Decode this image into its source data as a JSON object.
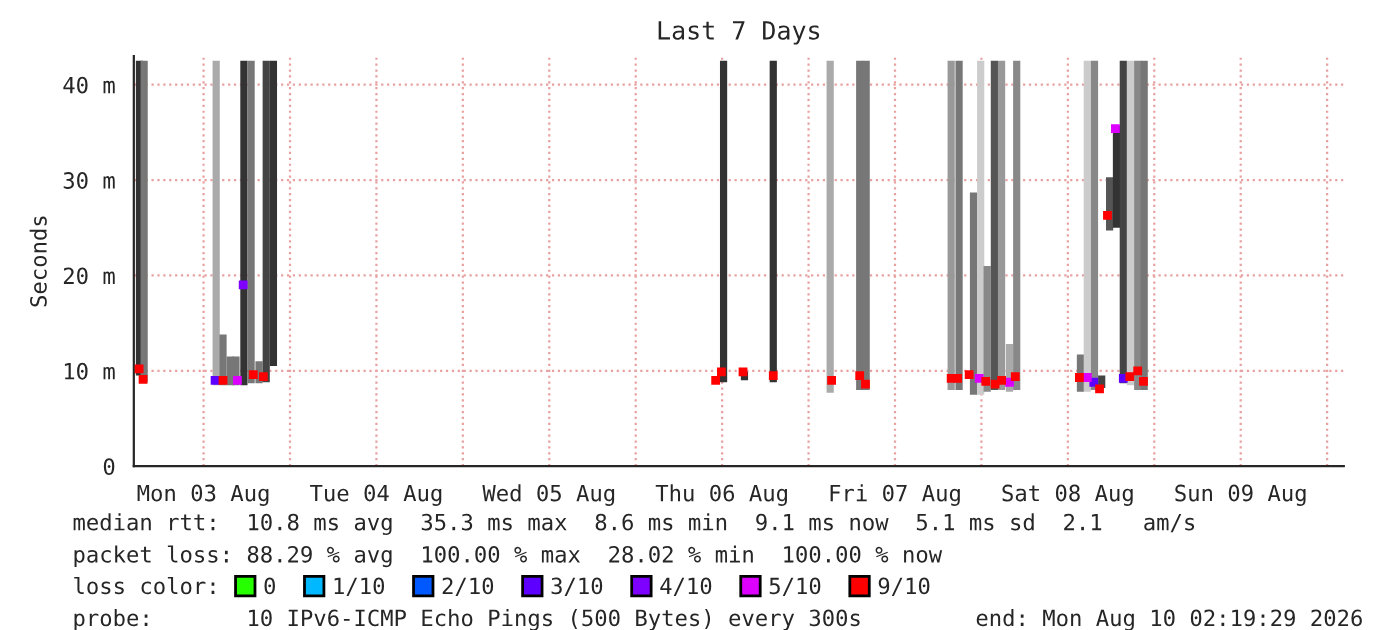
{
  "chart_data": {
    "type": "bar",
    "title": "Last 7 Days",
    "ylabel": "Seconds",
    "legend_title": "loss color:",
    "xlim": [
      "2026-08-03T02:19",
      "2026-08-10T02:19"
    ],
    "xticks": [
      {
        "value": "2026-08-03T12:00",
        "label": "Mon 03 Aug"
      },
      {
        "value": "2026-08-04T00:00",
        "label": null
      },
      {
        "value": "2026-08-04T12:00",
        "label": "Tue 04 Aug"
      },
      {
        "value": "2026-08-05T00:00",
        "label": null
      },
      {
        "value": "2026-08-05T12:00",
        "label": "Wed 05 Aug"
      },
      {
        "value": "2026-08-06T00:00",
        "label": null
      },
      {
        "value": "2026-08-06T12:00",
        "label": "Thu 06 Aug"
      },
      {
        "value": "2026-08-07T00:00",
        "label": null
      },
      {
        "value": "2026-08-07T12:00",
        "label": "Fri 07 Aug"
      },
      {
        "value": "2026-08-08T00:00",
        "label": null
      },
      {
        "value": "2026-08-08T12:00",
        "label": "Sat 08 Aug"
      },
      {
        "value": "2026-08-09T00:00",
        "label": null
      },
      {
        "value": "2026-08-09T12:00",
        "label": "Sun 09 Aug"
      },
      {
        "value": "2026-08-10T00:00",
        "label": null
      }
    ],
    "ylim": [
      0,
      43
    ],
    "yticks": [
      0,
      {
        "value": 10,
        "label": "10 m"
      },
      {
        "value": 20,
        "label": "20 m"
      },
      {
        "value": 30,
        "label": "30 m"
      },
      {
        "value": 40,
        "label": "40 m"
      }
    ],
    "grid": true,
    "legend": "bottom",
    "series": [
      {
        "x": [
          "2026-08-03T03:06",
          "2026-08-03T03:45",
          "2026-08-03T13:45",
          "2026-08-03T14:42",
          "2026-08-03T15:42",
          "2026-08-03T16:30",
          "2026-08-03T17:36",
          "2026-08-03T18:36",
          "2026-08-03T19:42",
          "2026-08-03T20:42",
          "2026-08-03T21:42",
          "2026-08-06T12:12",
          "2026-08-06T15:06",
          "2026-08-06T19:06",
          "2026-08-07T03:00",
          "2026-08-07T07:06",
          "2026-08-07T08:00",
          "2026-08-07T19:48",
          "2026-08-07T20:54",
          "2026-08-07T22:54",
          "2026-08-07T23:54",
          "2026-08-08T00:48",
          "2026-08-08T01:48",
          "2026-08-08T02:48",
          "2026-08-08T03:54",
          "2026-08-08T04:54",
          "2026-08-08T13:45",
          "2026-08-08T14:42",
          "2026-08-08T15:42",
          "2026-08-08T16:42",
          "2026-08-08T17:48",
          "2026-08-08T18:45",
          "2026-08-08T19:42",
          "2026-08-08T20:42",
          "2026-08-08T21:42",
          "2026-08-08T22:36"
        ],
        "base": [
          9.5,
          8.8,
          8.5,
          8.5,
          8.5,
          8.5,
          8.5,
          8.7,
          8.7,
          8.8,
          10.5,
          8.8,
          9.0,
          8.8,
          7.7,
          8.0,
          8.0,
          8.0,
          8.0,
          7.5,
          7.5,
          7.8,
          8.0,
          8.0,
          7.8,
          8.0,
          7.8,
          7.8,
          8.0,
          8.2,
          24.7,
          25.0,
          8.7,
          8.5,
          8.0,
          8.0
        ],
        "values": [
          33.0,
          33.7,
          34.0,
          5.3,
          3.0,
          3.0,
          34.0,
          33.8,
          2.3,
          33.7,
          32.0,
          33.7,
          0.9,
          33.7,
          34.8,
          34.5,
          34.5,
          34.5,
          34.5,
          21.2,
          35.0,
          13.2,
          34.5,
          34.5,
          5.0,
          34.5,
          3.9,
          34.7,
          34.5,
          1.3,
          5.6,
          10.7,
          33.8,
          34.0,
          34.5,
          34.5
        ],
        "colors": [
          "#333333",
          "#777777",
          "#aaaaaa",
          "#777777",
          "#777777",
          "#777777",
          "#333333",
          "#777777",
          "#777777",
          "#444444",
          "#333333",
          "#333333",
          "#333333",
          "#333333",
          "#aaaaaa",
          "#777777",
          "#777777",
          "#999999",
          "#777777",
          "#777777",
          "#cccccc",
          "#888888",
          "#555555",
          "#999999",
          "#aaaaaa",
          "#888888",
          "#777777",
          "#cccccc",
          "#888888",
          "#444444",
          "#555555",
          "#333333",
          "#444444",
          "#cccccc",
          "#888888",
          "#777777"
        ]
      },
      {
        "type": "scatter",
        "name": "0",
        "color": "#26ff00"
      },
      {
        "type": "scatter",
        "name": "1/10",
        "color": "#00b8ff"
      },
      {
        "type": "scatter",
        "name": "2/10",
        "color": "#0059ff"
      },
      {
        "type": "scatter",
        "name": "3/10",
        "color": "#5e00ff",
        "x": [
          "2026-08-03T13:36",
          "2026-08-08T15:36",
          "2026-08-08T19:42"
        ],
        "values": [
          9.0,
          8.8,
          9.2
        ]
      },
      {
        "type": "scatter",
        "name": "4/10",
        "color": "#7e00ff",
        "x": [
          "2026-08-03T17:30"
        ],
        "values": [
          19.0
        ]
      },
      {
        "type": "scatter",
        "name": "5/10",
        "color": "#dd00ff",
        "x": [
          "2026-08-03T16:42",
          "2026-08-07T23:42",
          "2026-08-08T03:54",
          "2026-08-08T14:42",
          "2026-08-08T18:36"
        ],
        "values": [
          9.0,
          9.2,
          8.8,
          9.3,
          35.4
        ]
      },
      {
        "type": "scatter",
        "name": "9/10",
        "color": "#ff0000",
        "x": [
          "2026-08-03T03:03",
          "2026-08-03T03:36",
          "2026-08-03T14:42",
          "2026-08-03T18:54",
          "2026-08-03T20:18",
          "2026-08-06T11:06",
          "2026-08-06T11:54",
          "2026-08-06T14:54",
          "2026-08-06T19:06",
          "2026-08-07T03:12",
          "2026-08-07T07:06",
          "2026-08-07T07:54",
          "2026-08-07T19:48",
          "2026-08-07T20:42",
          "2026-08-07T22:18",
          "2026-08-08T00:36",
          "2026-08-08T01:54",
          "2026-08-08T02:48",
          "2026-08-08T04:42",
          "2026-08-08T13:36",
          "2026-08-08T16:24",
          "2026-08-08T17:30",
          "2026-08-08T20:36",
          "2026-08-08T21:42",
          "2026-08-08T22:30"
        ],
        "values": [
          10.2,
          9.1,
          9.0,
          9.6,
          9.4,
          9.0,
          9.9,
          9.9,
          9.5,
          9.0,
          9.5,
          8.6,
          9.2,
          9.2,
          9.6,
          8.9,
          8.6,
          9.0,
          9.4,
          9.3,
          8.1,
          26.3,
          9.4,
          10.0,
          8.9
        ]
      }
    ],
    "annotations": [
      "median rtt:  10.8 ms avg  35.3 ms max  8.6 ms min  9.1 ms now  5.1 ms sd  2.1   am/s",
      "packet loss: 88.29 % avg  100.00 % max  28.02 % min  100.00 % now",
      "probe:       10 IPv6-ICMP Echo Pings (500 Bytes) every 300s",
      "end: Mon Aug 10 02:19:29 2026"
    ]
  }
}
